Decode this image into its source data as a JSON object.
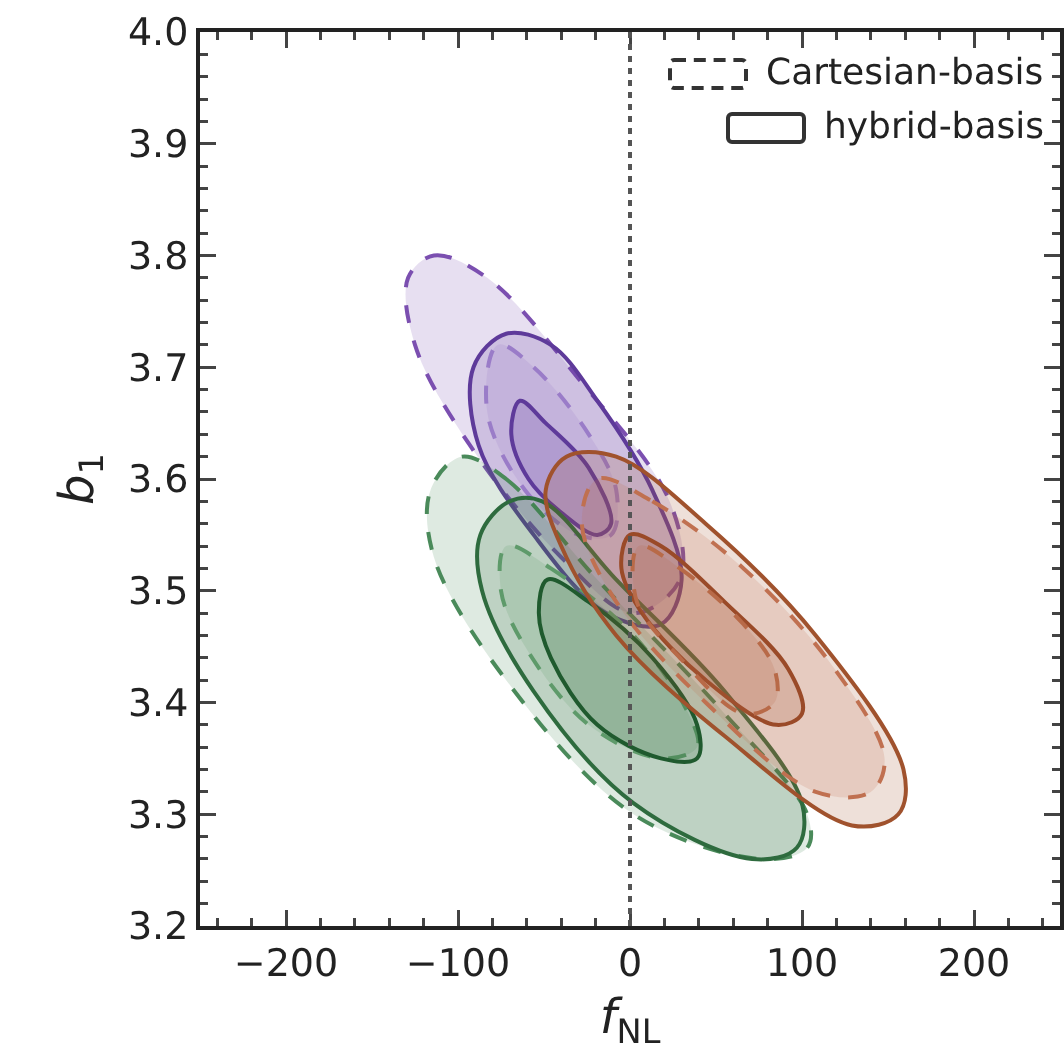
{
  "chart_data": {
    "type": "area",
    "xlabel": "f$_{NL}$",
    "ylabel": "b$_{1}$",
    "xlim": [
      -250,
      250
    ],
    "xticks": [
      {
        "value": -200,
        "label": "−200"
      },
      {
        "value": -100,
        "label": "−100"
      },
      0,
      100,
      200
    ],
    "ylim": [
      3.2,
      4.0
    ],
    "yticks": [
      3.2,
      3.3,
      3.4,
      3.5,
      3.6,
      3.7,
      3.8,
      3.9,
      {
        "value": 4,
        "label": "4.0"
      }
    ],
    "grid": false,
    "marker": "none",
    "annotations": [
      "Cartesian-basis",
      "hybrid-basis"
    ],
    "ref_lines": [
      {
        "axis": "x",
        "value": 0,
        "color": "#555555",
        "line_style": "dotted"
      }
    ],
    "series": [
      {
        "color": "#7b4fb0",
        "line_style": "dashed",
        "x": [
          -129,
          -114,
          -83,
          -30,
          23,
          29,
          2,
          -40,
          -93,
          -125
        ],
        "values": [
          3.78,
          3.8,
          3.78,
          3.69,
          3.58,
          3.51,
          3.48,
          3.53,
          3.63,
          3.72
        ]
      },
      {
        "color": "#5e3a9a",
        "line_style": "solid",
        "x": [
          -72,
          -46,
          -19,
          13,
          30,
          18,
          -14,
          -56,
          -88,
          -91
        ],
        "values": [
          3.73,
          3.72,
          3.67,
          3.59,
          3.51,
          3.47,
          3.48,
          3.55,
          3.63,
          3.7
        ]
      },
      {
        "color": "#9a7cc8",
        "line_style": "dashed",
        "x": [
          -77,
          -56,
          -24,
          -8,
          -11,
          -30,
          -61,
          -83
        ],
        "values": [
          3.72,
          3.7,
          3.64,
          3.59,
          3.55,
          3.55,
          3.59,
          3.66
        ]
      },
      {
        "color": "#5e3a9a",
        "line_style": "solid",
        "x": [
          -64,
          -49,
          -24,
          -11,
          -19,
          -40,
          -59,
          -69
        ],
        "values": [
          3.67,
          3.65,
          3.61,
          3.56,
          3.55,
          3.57,
          3.6,
          3.64
        ]
      },
      {
        "color": "#4a8a5a",
        "line_style": "dashed",
        "x": [
          -98,
          -72,
          -19,
          55,
          103,
          103,
          76,
          2,
          -72,
          -114,
          -116
        ],
        "values": [
          3.62,
          3.6,
          3.51,
          3.39,
          3.3,
          3.27,
          3.26,
          3.3,
          3.42,
          3.53,
          3.59
        ]
      },
      {
        "color": "#2e6b3e",
        "line_style": "solid",
        "x": [
          -70,
          -51,
          -8,
          55,
          100,
          97,
          71,
          2,
          -56,
          -86,
          -87
        ],
        "values": [
          3.58,
          3.58,
          3.51,
          3.41,
          3.31,
          3.27,
          3.26,
          3.31,
          3.41,
          3.5,
          3.55
        ]
      },
      {
        "color": "#5e9a6a",
        "line_style": "dashed",
        "x": [
          -72,
          -46,
          2,
          34,
          39,
          18,
          -24,
          -61,
          -75
        ],
        "values": [
          3.54,
          3.52,
          3.46,
          3.39,
          3.36,
          3.35,
          3.38,
          3.45,
          3.5
        ]
      },
      {
        "color": "#1f5a2e",
        "line_style": "solid",
        "x": [
          -48,
          -24,
          13,
          39,
          39,
          18,
          -19,
          -46,
          -53
        ],
        "values": [
          3.51,
          3.49,
          3.44,
          3.38,
          3.35,
          3.35,
          3.38,
          3.44,
          3.48
        ]
      },
      {
        "color": "#a0522d",
        "line_style": "solid",
        "x": [
          -37,
          -8,
          44,
          108,
          159,
          156,
          129,
          55,
          -8,
          -40,
          -49
        ],
        "values": [
          3.62,
          3.62,
          3.56,
          3.46,
          3.34,
          3.3,
          3.29,
          3.37,
          3.46,
          3.54,
          3.59
        ]
      },
      {
        "color": "#c07050",
        "line_style": "dashed",
        "x": [
          -19,
          13,
          66,
          119,
          148,
          140,
          108,
          44,
          -8,
          -28
        ],
        "values": [
          3.6,
          3.58,
          3.52,
          3.43,
          3.35,
          3.32,
          3.32,
          3.4,
          3.49,
          3.56
        ]
      },
      {
        "color": "#9a4a28",
        "line_style": "solid",
        "x": [
          0,
          18,
          55,
          92,
          100,
          85,
          44,
          7,
          -5
        ],
        "values": [
          3.55,
          3.54,
          3.49,
          3.43,
          3.39,
          3.38,
          3.42,
          3.48,
          3.52
        ]
      },
      {
        "color": "#b86a48",
        "line_style": "dashed",
        "x": [
          5,
          29,
          66,
          84,
          84,
          66,
          29,
          4
        ],
        "values": [
          3.54,
          3.52,
          3.47,
          3.43,
          3.4,
          3.39,
          3.44,
          3.49
        ]
      }
    ]
  }
}
